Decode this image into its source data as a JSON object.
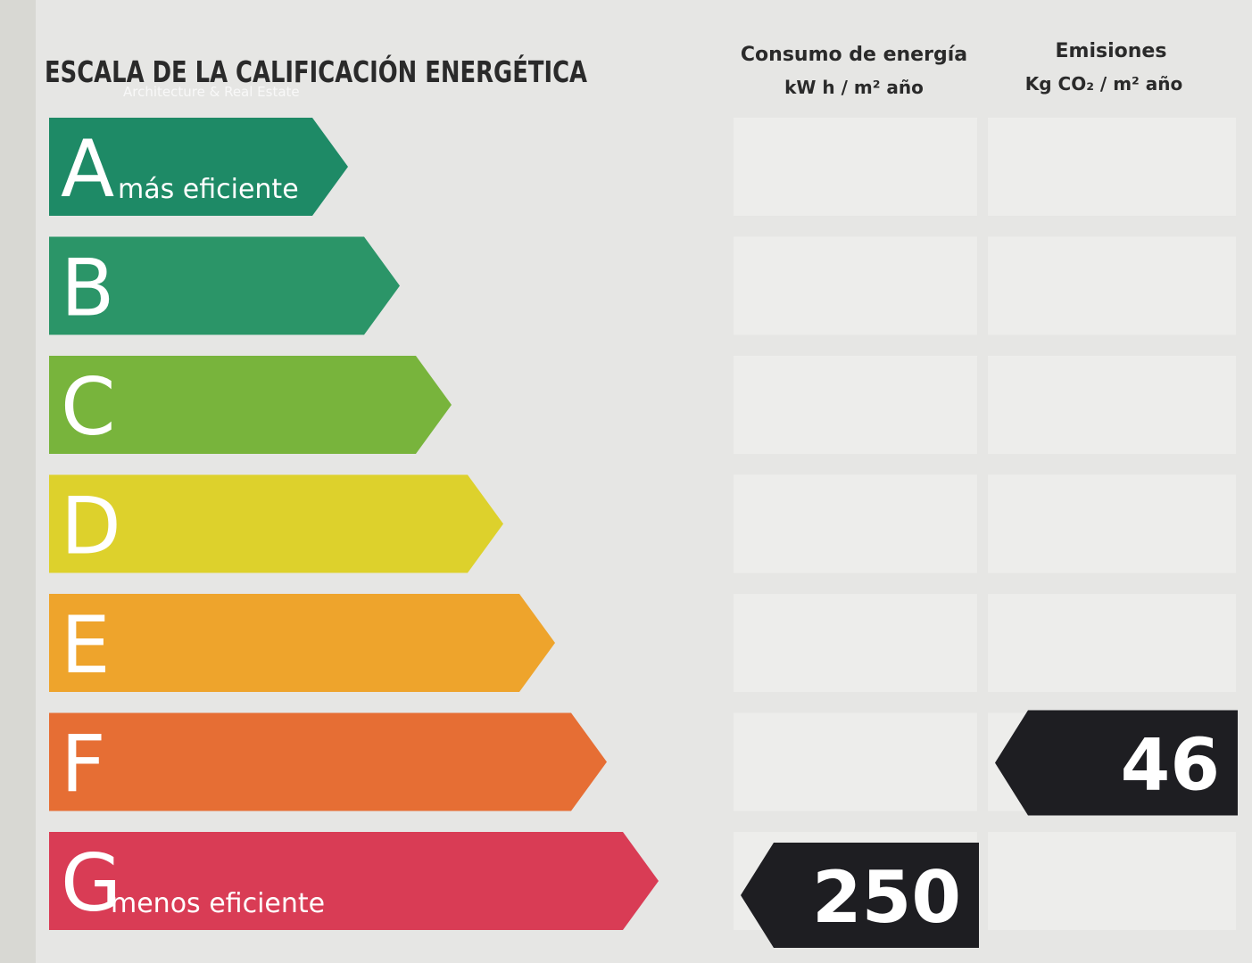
{
  "title": "ESCALA DE LA CALIFICACIÓN ENERGÉTICA",
  "watermark": "Architecture & Real Estate",
  "columns": {
    "energy": {
      "title": "Consumo de energía",
      "unit": "kW h / m² año"
    },
    "emissions": {
      "title": "Emisiones",
      "unit": "Kg CO₂ / m² año"
    }
  },
  "grades": [
    {
      "letter": "A",
      "caption": "más eficiente",
      "color": "#1e8a66"
    },
    {
      "letter": "B",
      "color": "#2b9568"
    },
    {
      "letter": "C",
      "color": "#78b43c"
    },
    {
      "letter": "D",
      "color": "#ddd12c"
    },
    {
      "letter": "E",
      "color": "#eea42c"
    },
    {
      "letter": "F",
      "color": "#e66e34",
      "emissions": 46
    },
    {
      "letter": "G",
      "caption": "menos eficiente",
      "color": "#d93c55",
      "energy": 250
    }
  ]
}
